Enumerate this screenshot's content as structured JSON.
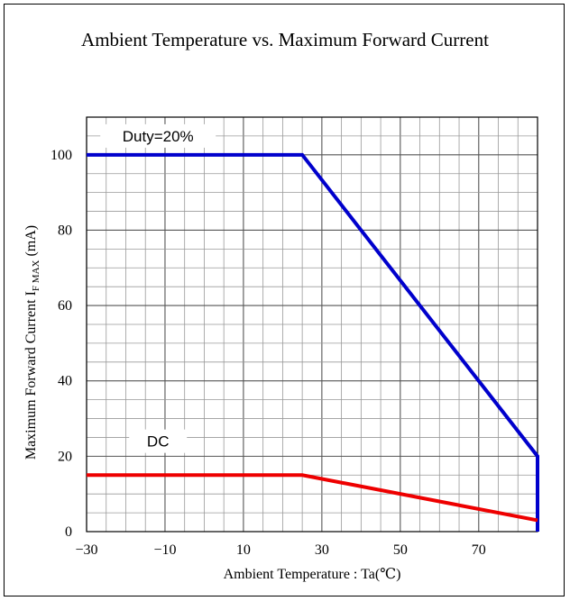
{
  "chart_data": {
    "type": "line",
    "title": "Ambient Temperature vs. Maximum Forward Current",
    "xlabel": "Ambient Temperature : Ta(℃)",
    "ylabel": {
      "prefix": "Maximum Forward Current I",
      "subscript": "F MAX",
      "suffix": " (mA)"
    },
    "xlim": [
      -30,
      85
    ],
    "ylim": [
      0,
      110
    ],
    "x_ticks": [
      -30,
      -10,
      10,
      30,
      50,
      70
    ],
    "x_tick_labels": [
      "−30",
      "−10",
      "10",
      "30",
      "50",
      "70"
    ],
    "y_ticks": [
      0,
      20,
      40,
      60,
      80,
      100
    ],
    "y_tick_labels": [
      "0",
      "20",
      "40",
      "60",
      "80",
      "100"
    ],
    "grid": true,
    "series": [
      {
        "name": "Duty=20%",
        "color": "#0000cc",
        "x": [
          -30,
          25,
          85,
          85
        ],
        "y": [
          100,
          100,
          20,
          0
        ]
      },
      {
        "name": "DC",
        "color": "#ee0000",
        "x": [
          -30,
          25,
          85
        ],
        "y": [
          15,
          15,
          3
        ]
      }
    ]
  }
}
